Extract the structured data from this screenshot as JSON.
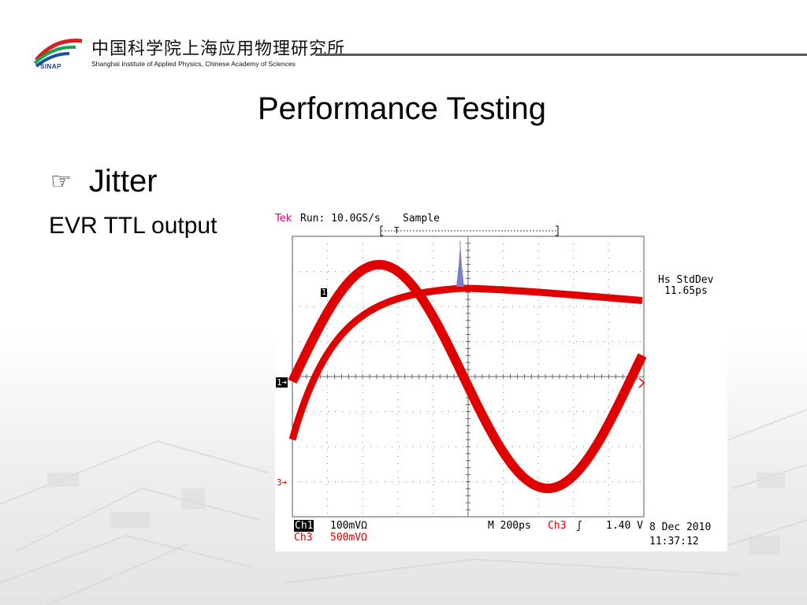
{
  "header": {
    "logo_text": "SINAP",
    "institute_cn": "中国科学院上海应用物理研究所",
    "institute_en": "Shanghai Institute of Applied Physics, Chinese Academy of Sciences"
  },
  "slide": {
    "title": "Performance Testing",
    "bullet_icon": "pointing-hand-icon",
    "bullet_glyph": "☞",
    "bullet": "Jitter",
    "subtext": "EVR TTL output"
  },
  "scope": {
    "brand": "Tek",
    "run_status": "Run: 10.0GS/s",
    "acq_mode": "Sample",
    "trigger_marker": "T",
    "ch1_marker": "1",
    "ch1_ground_marker": "1➔",
    "ch3_ground_marker": "3➔",
    "measurement_label": "Hs StdDev",
    "measurement_value": "11.65ps",
    "ch1_label": "Ch1",
    "ch1_scale": "100mVΩ",
    "ch3_label": "Ch3",
    "ch3_scale": "500mVΩ",
    "timebase": "M  200ps",
    "trigger_source": "Ch3",
    "trigger_slope": "ʃ",
    "trigger_level": "1.40 V",
    "date": "8 Dec 2010",
    "time": "11:37:12",
    "colors": {
      "trace": "#e00000",
      "histogram": "#7a7fcc",
      "brand": "#e0007a"
    }
  }
}
